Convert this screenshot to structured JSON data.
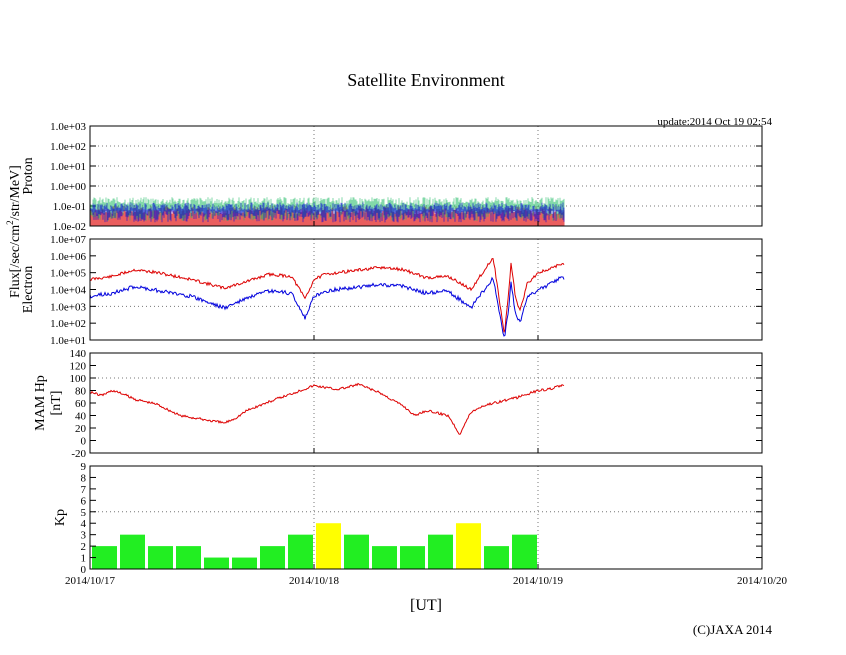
{
  "title": "Satellite Environment",
  "update": "update:2014 Oct 19 02:54",
  "copyright": "(C)JAXA 2014",
  "x_axis_label": "[UT]",
  "x_ticks": [
    "2014/10/17",
    "2014/10/18",
    "2014/10/19",
    "2014/10/20"
  ],
  "flux_label_main": "Flux[/sec/cm",
  "flux_label_sup": "2",
  "flux_label_tail": "/str/MeV]",
  "colors": {
    "red": "#dd0000",
    "blue": "#0000dd",
    "green": "#22bb66",
    "kp_green": "#22ee22",
    "kp_yellow": "#ffff00",
    "grid": "#777777"
  },
  "chart_data": [
    {
      "type": "line",
      "name": "proton",
      "ylabel": "Proton",
      "yscale": "log",
      "ylim": [
        0.01,
        1000
      ],
      "ytick_labels": [
        "1.0e-02",
        "1.0e-01",
        "1.0e+00",
        "1.0e+01",
        "1.0e+02",
        "1.0e+03"
      ],
      "xlim_days": [
        0,
        3
      ],
      "series": [
        {
          "name": "proton-ch1",
          "color": "red",
          "x": [
            0.0,
            0.5,
            1.0,
            1.5,
            2.12
          ],
          "y": [
            0.04,
            0.04,
            0.04,
            0.04,
            0.04
          ]
        },
        {
          "name": "proton-ch2",
          "color": "green",
          "x": [
            0.0,
            0.5,
            1.0,
            1.5,
            2.12
          ],
          "y": [
            0.07,
            0.07,
            0.07,
            0.07,
            0.07
          ]
        },
        {
          "name": "proton-ch3",
          "color": "blue",
          "x": [
            0.0,
            0.5,
            1.0,
            1.5,
            2.12
          ],
          "y": [
            0.06,
            0.06,
            0.06,
            0.06,
            0.06
          ]
        }
      ]
    },
    {
      "type": "line",
      "name": "electron",
      "ylabel": "Electron",
      "yscale": "log",
      "ylim": [
        10,
        10000000
      ],
      "ytick_labels": [
        "1.0e+01",
        "1.0e+02",
        "1.0e+03",
        "1.0e+04",
        "1.0e+05",
        "1.0e+06",
        "1.0e+07"
      ],
      "xlim_days": [
        0,
        3
      ],
      "series": [
        {
          "name": "electron-low",
          "color": "red",
          "x": [
            0.0,
            0.1,
            0.2,
            0.3,
            0.45,
            0.6,
            0.7,
            0.8,
            0.9,
            0.96,
            0.98,
            1.0,
            1.05,
            1.15,
            1.3,
            1.4,
            1.5,
            1.6,
            1.7,
            1.8,
            1.85,
            1.87,
            1.88,
            1.9,
            1.92,
            1.95,
            2.0,
            2.05,
            2.08,
            2.1,
            2.12
          ],
          "y": [
            40000,
            60000,
            150000,
            100000,
            40000,
            12000,
            30000,
            80000,
            60000,
            3000,
            10000,
            40000,
            80000,
            120000,
            200000,
            150000,
            50000,
            60000,
            10000,
            800000,
            20,
            10000,
            400000,
            3000,
            500,
            20000,
            100000,
            150000,
            250000,
            300000,
            300000
          ]
        },
        {
          "name": "electron-high",
          "color": "blue",
          "x": [
            0.0,
            0.1,
            0.2,
            0.3,
            0.45,
            0.6,
            0.7,
            0.8,
            0.9,
            0.96,
            0.98,
            1.0,
            1.05,
            1.15,
            1.3,
            1.4,
            1.5,
            1.6,
            1.7,
            1.8,
            1.85,
            1.87,
            1.88,
            1.9,
            1.92,
            1.95,
            2.0,
            2.05,
            2.08,
            2.1,
            2.12
          ],
          "y": [
            4000,
            6000,
            15000,
            9000,
            4000,
            800,
            3000,
            8000,
            6000,
            200,
            800,
            4000,
            8000,
            12000,
            20000,
            15000,
            6000,
            8000,
            800,
            50000,
            10,
            1000,
            30000,
            300,
            100,
            3000,
            10000,
            20000,
            35000,
            45000,
            45000
          ]
        }
      ]
    },
    {
      "type": "line",
      "name": "mam-hp",
      "ylabel": "MAM Hp",
      "ylabel2": "[nT]",
      "yscale": "linear",
      "ylim": [
        -20,
        140
      ],
      "yticks": [
        -20,
        0,
        20,
        40,
        60,
        80,
        100,
        120,
        140
      ],
      "xlim_days": [
        0,
        3
      ],
      "series": [
        {
          "name": "hp",
          "color": "red",
          "x": [
            0.0,
            0.05,
            0.1,
            0.15,
            0.2,
            0.3,
            0.4,
            0.5,
            0.6,
            0.65,
            0.7,
            0.75,
            0.8,
            0.9,
            1.0,
            1.05,
            1.1,
            1.15,
            1.2,
            1.3,
            1.4,
            1.45,
            1.5,
            1.6,
            1.65,
            1.7,
            1.75,
            1.8,
            1.9,
            2.0,
            2.05,
            2.1,
            2.12
          ],
          "y": [
            78,
            72,
            80,
            74,
            66,
            58,
            40,
            34,
            28,
            36,
            48,
            55,
            62,
            75,
            88,
            85,
            82,
            85,
            90,
            75,
            55,
            40,
            48,
            40,
            10,
            45,
            55,
            60,
            68,
            80,
            82,
            88,
            86
          ]
        }
      ]
    },
    {
      "type": "bar",
      "name": "kp",
      "ylabel": "Kp",
      "ylim": [
        0,
        9
      ],
      "yticks": [
        0,
        1,
        2,
        3,
        4,
        5,
        6,
        7,
        8,
        9
      ],
      "threshold": 5,
      "bar_interval_hours": 3,
      "values": [
        2,
        3,
        2,
        2,
        1,
        1,
        2,
        3,
        4,
        3,
        2,
        2,
        3,
        4,
        2,
        3
      ],
      "highlight_min": 4
    }
  ]
}
